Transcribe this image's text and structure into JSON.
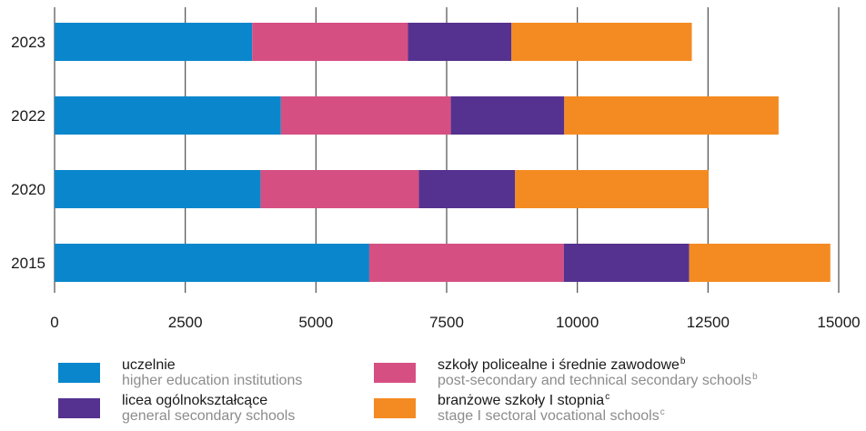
{
  "chart_data": {
    "type": "bar",
    "orientation": "horizontal",
    "stacked": true,
    "categories": [
      "2023",
      "2022",
      "2020",
      "2015"
    ],
    "series": [
      {
        "name": "uczelnie",
        "name_en": "higher education institutions",
        "color": "#0a87cc",
        "values": [
          3780,
          4330,
          3940,
          6020
        ]
      },
      {
        "name": "szkoły policealne i średnie zawodowe",
        "name_en": "post-secondary and technical secondary schools",
        "footnote": "b",
        "color": "#d64f82",
        "values": [
          2980,
          3250,
          3030,
          3720
        ]
      },
      {
        "name": "licea ogólnokształcące",
        "name_en": "general secondary schools",
        "color": "#55328f",
        "values": [
          1980,
          2170,
          1840,
          2400
        ]
      },
      {
        "name": "branżowe szkoły I stopnia",
        "name_en": "stage I sectoral vocational schools",
        "footnote": "c",
        "color": "#f48b22",
        "values": [
          3450,
          4100,
          3700,
          2700
        ]
      }
    ],
    "xlim": [
      0,
      15000
    ],
    "xticks": [
      "0",
      "2500",
      "5000",
      "7500",
      "10000",
      "12500",
      "15000"
    ],
    "grid": true,
    "legend_position": "bottom"
  }
}
